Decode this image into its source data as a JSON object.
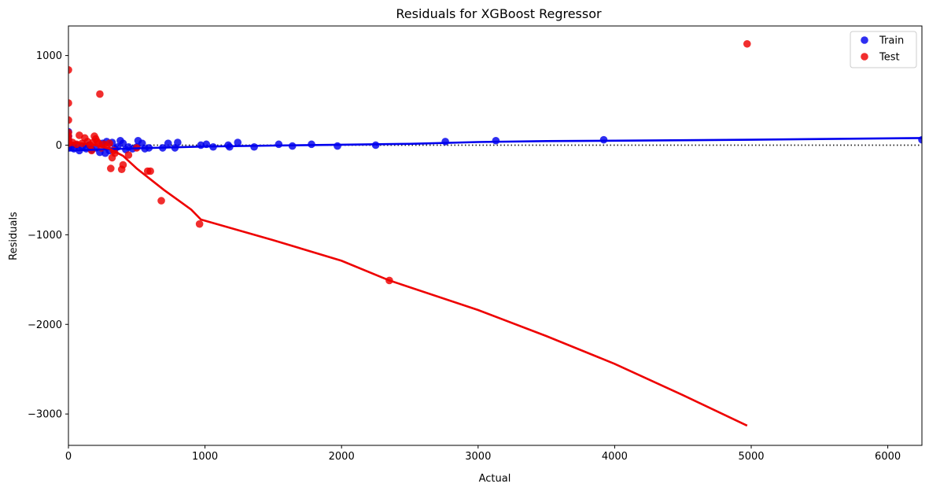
{
  "chart_data": {
    "type": "scatter",
    "title": "Residuals for XGBoost Regressor",
    "xlabel": "Actual",
    "ylabel": "Residuals",
    "xlim": [
      0,
      6250
    ],
    "ylim": [
      -3350,
      1330
    ],
    "xticks": [
      0,
      1000,
      2000,
      3000,
      4000,
      5000,
      6000
    ],
    "xtick_labels": [
      "0",
      "1000",
      "2000",
      "3000",
      "4000",
      "5000",
      "6000"
    ],
    "yticks": [
      1000,
      0,
      -1000,
      -2000,
      -3000
    ],
    "ytick_labels": [
      "1000",
      "0",
      "−1000",
      "−2000",
      "−3000"
    ],
    "grid": false,
    "legend": {
      "position": "top-right"
    },
    "zero_line": {
      "y": 0,
      "style": "dotted",
      "color": "#222222"
    },
    "series": [
      {
        "name": "Train",
        "color": "#0000ee",
        "points": [
          [
            0,
            150
          ],
          [
            0,
            100
          ],
          [
            0,
            60
          ],
          [
            0,
            20
          ],
          [
            0,
            -10
          ],
          [
            0,
            -30
          ],
          [
            10,
            10
          ],
          [
            20,
            -20
          ],
          [
            40,
            -40
          ],
          [
            60,
            0
          ],
          [
            80,
            -60
          ],
          [
            100,
            -20
          ],
          [
            130,
            -40
          ],
          [
            150,
            0
          ],
          [
            170,
            -50
          ],
          [
            200,
            -30
          ],
          [
            230,
            -80
          ],
          [
            250,
            20
          ],
          [
            270,
            -90
          ],
          [
            280,
            40
          ],
          [
            300,
            -60
          ],
          [
            320,
            30
          ],
          [
            340,
            -40
          ],
          [
            360,
            -20
          ],
          [
            380,
            50
          ],
          [
            400,
            20
          ],
          [
            420,
            -50
          ],
          [
            440,
            -20
          ],
          [
            470,
            -40
          ],
          [
            500,
            -20
          ],
          [
            510,
            50
          ],
          [
            540,
            20
          ],
          [
            560,
            -40
          ],
          [
            590,
            -30
          ],
          [
            690,
            -30
          ],
          [
            730,
            20
          ],
          [
            780,
            -30
          ],
          [
            800,
            30
          ],
          [
            970,
            0
          ],
          [
            1010,
            10
          ],
          [
            1060,
            -20
          ],
          [
            1170,
            0
          ],
          [
            1180,
            -20
          ],
          [
            1240,
            30
          ],
          [
            1360,
            -20
          ],
          [
            1540,
            10
          ],
          [
            1640,
            -10
          ],
          [
            1780,
            10
          ],
          [
            1970,
            -10
          ],
          [
            2250,
            0
          ],
          [
            2760,
            40
          ],
          [
            3130,
            50
          ],
          [
            3920,
            60
          ],
          [
            6250,
            60
          ]
        ],
        "fit_line": [
          [
            0,
            -60
          ],
          [
            500,
            -35
          ],
          [
            1000,
            -15
          ],
          [
            1500,
            -5
          ],
          [
            2000,
            5
          ],
          [
            2500,
            15
          ],
          [
            3000,
            35
          ],
          [
            3500,
            45
          ],
          [
            4000,
            50
          ],
          [
            5000,
            60
          ],
          [
            6250,
            80
          ]
        ]
      },
      {
        "name": "Test",
        "color": "#ee0000",
        "points": [
          [
            0,
            840
          ],
          [
            0,
            470
          ],
          [
            0,
            280
          ],
          [
            0,
            140
          ],
          [
            0,
            100
          ],
          [
            0,
            60
          ],
          [
            0,
            20
          ],
          [
            30,
            30
          ],
          [
            60,
            10
          ],
          [
            80,
            110
          ],
          [
            100,
            20
          ],
          [
            120,
            80
          ],
          [
            140,
            40
          ],
          [
            160,
            0
          ],
          [
            170,
            -60
          ],
          [
            180,
            30
          ],
          [
            190,
            100
          ],
          [
            200,
            70
          ],
          [
            210,
            40
          ],
          [
            220,
            20
          ],
          [
            230,
            570
          ],
          [
            240,
            -30
          ],
          [
            260,
            10
          ],
          [
            280,
            -10
          ],
          [
            300,
            20
          ],
          [
            310,
            -260
          ],
          [
            320,
            -140
          ],
          [
            330,
            -60
          ],
          [
            340,
            -90
          ],
          [
            390,
            -270
          ],
          [
            400,
            -220
          ],
          [
            440,
            -110
          ],
          [
            500,
            -30
          ],
          [
            580,
            -290
          ],
          [
            600,
            -290
          ],
          [
            680,
            -620
          ],
          [
            960,
            -880
          ],
          [
            2350,
            -1510
          ],
          [
            4970,
            1130
          ]
        ],
        "fit_line": [
          [
            0,
            30
          ],
          [
            100,
            20
          ],
          [
            200,
            0
          ],
          [
            300,
            -40
          ],
          [
            400,
            -120
          ],
          [
            450,
            -190
          ],
          [
            500,
            -260
          ],
          [
            600,
            -380
          ],
          [
            700,
            -500
          ],
          [
            800,
            -610
          ],
          [
            900,
            -720
          ],
          [
            970,
            -830
          ],
          [
            1500,
            -1060
          ],
          [
            2000,
            -1290
          ],
          [
            2350,
            -1510
          ],
          [
            3000,
            -1840
          ],
          [
            3500,
            -2130
          ],
          [
            4000,
            -2440
          ],
          [
            4500,
            -2790
          ],
          [
            4970,
            -3130
          ]
        ]
      }
    ]
  }
}
